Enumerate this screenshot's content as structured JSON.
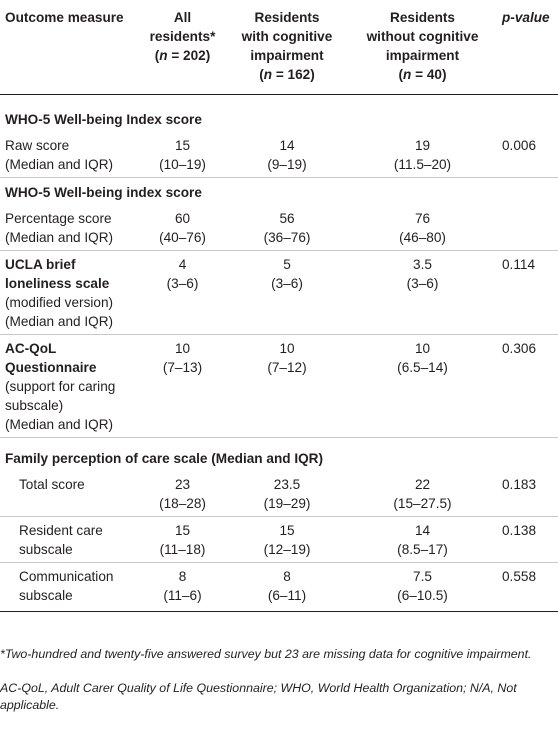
{
  "columns": {
    "measure": "Outcome measure",
    "all": [
      "All",
      "residents*",
      "(n = 202)"
    ],
    "ci": [
      "Residents",
      "with cognitive",
      "impairment",
      "(n = 162)"
    ],
    "noci": [
      "Residents",
      "without cognitive",
      "impairment",
      "(n = 40)"
    ],
    "p": "p-value"
  },
  "sections": {
    "who_raw": "WHO-5 Well-being Index score",
    "who_pct": "WHO-5 Well-being index score",
    "family": "Family perception of care scale (Median and IQR)"
  },
  "rows": {
    "raw": {
      "label": [
        "Raw score",
        "(Median and IQR)"
      ],
      "all": [
        "15",
        "(10–19)"
      ],
      "ci": [
        "14",
        "(9–19)"
      ],
      "noci": [
        "19",
        "(11.5–20)"
      ],
      "p": "0.006"
    },
    "pct": {
      "label": [
        "Percentage score",
        "(Median and IQR)"
      ],
      "all": [
        "60",
        "(40–76)"
      ],
      "ci": [
        "56",
        "(36–76)"
      ],
      "noci": [
        "76",
        "(46–80)"
      ],
      "p": ""
    },
    "ucla": {
      "label_bold": [
        "UCLA brief",
        "loneliness scale"
      ],
      "label": [
        "(modified version)",
        "(Median and IQR)"
      ],
      "all": [
        "4",
        "(3–6)"
      ],
      "ci": [
        "5",
        "(3–6)"
      ],
      "noci": [
        "3.5",
        "(3–6)"
      ],
      "p": "0.114"
    },
    "acqol": {
      "label_bold": [
        "AC-QoL",
        "Questionnaire"
      ],
      "label": [
        "(support for caring",
        "subscale)",
        "(Median and IQR)"
      ],
      "all": [
        "10",
        "(7–13)"
      ],
      "ci": [
        "10",
        "(7–12)"
      ],
      "noci": [
        "10",
        "(6.5–14)"
      ],
      "p": "0.306"
    },
    "total": {
      "label": [
        "Total score"
      ],
      "all": [
        "23",
        "(18–28)"
      ],
      "ci": [
        "23.5",
        "(19–29)"
      ],
      "noci": [
        "22",
        "(15–27.5)"
      ],
      "p": "0.183"
    },
    "resident": {
      "label": [
        "Resident care",
        "subscale"
      ],
      "all": [
        "15",
        "(11–18)"
      ],
      "ci": [
        "15",
        "(12–19)"
      ],
      "noci": [
        "14",
        "(8.5–17)"
      ],
      "p": "0.138"
    },
    "comm": {
      "label": [
        "Communication",
        "subscale"
      ],
      "all": [
        "8",
        "(11–6)"
      ],
      "ci": [
        "8",
        "(6–11)"
      ],
      "noci": [
        "7.5",
        "(6–10.5)"
      ],
      "p": "0.558"
    }
  },
  "footnotes": {
    "note1": "*Two-hundred and twenty-five answered survey but 23 are missing data for cognitive impairment.",
    "note2": "AC-QoL, Adult Carer Quality of Life Questionnaire; WHO, World Health Organization; N/A, Not applicable."
  }
}
